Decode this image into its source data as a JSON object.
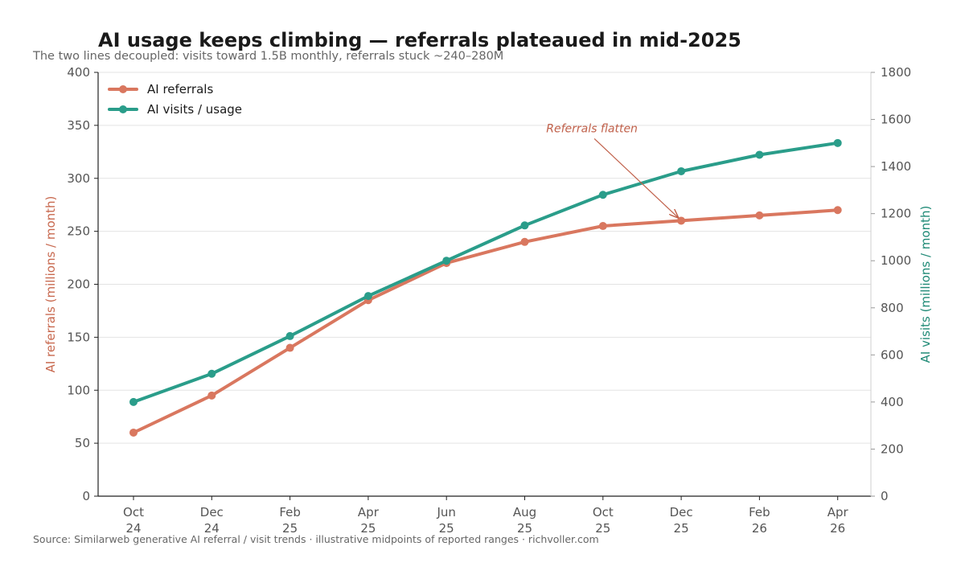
{
  "chart_data": {
    "type": "line",
    "title": "AI usage keeps climbing — referrals plateaued in mid-2025",
    "subtitle": "The two lines decoupled: visits toward 1.5B monthly, referrals stuck ~240–280M",
    "source": "Source: Similarweb generative AI referral / visit trends · illustrative midpoints of reported ranges · richvoller.com",
    "categories": [
      [
        "Oct",
        "24"
      ],
      [
        "Dec",
        "24"
      ],
      [
        "Feb",
        "25"
      ],
      [
        "Apr",
        "25"
      ],
      [
        "Jun",
        "25"
      ],
      [
        "Aug",
        "25"
      ],
      [
        "Oct",
        "25"
      ],
      [
        "Dec",
        "25"
      ],
      [
        "Feb",
        "26"
      ],
      [
        "Apr",
        "26"
      ]
    ],
    "ylabel_left": "AI referrals (millions / month)",
    "ylabel_right": "AI visits (millions / month)",
    "ylim_left": [
      0,
      400
    ],
    "ylim_right": [
      0,
      1800
    ],
    "yticks_left": [
      0,
      50,
      100,
      150,
      200,
      250,
      300,
      350,
      400
    ],
    "yticks_right": [
      0,
      200,
      400,
      600,
      800,
      1000,
      1200,
      1400,
      1600,
      1800
    ],
    "grid": "horizontal",
    "legend_position": "top-left",
    "series": [
      {
        "name": "AI referrals",
        "axis": "left",
        "color": "#d9775f",
        "values": [
          60,
          95,
          140,
          185,
          220,
          240,
          255,
          260,
          265,
          270
        ]
      },
      {
        "name": "AI visits / usage",
        "axis": "right",
        "color": "#2a9d8a",
        "values": [
          400,
          520,
          680,
          850,
          1000,
          1150,
          1280,
          1380,
          1450,
          1500
        ]
      }
    ],
    "annotations": [
      {
        "text": "Referrals flatten",
        "series": 0,
        "category_index": 7,
        "color": "#c0604a"
      }
    ],
    "axis_title_colors": {
      "left": "#c8694f",
      "right": "#1f8a76"
    }
  }
}
